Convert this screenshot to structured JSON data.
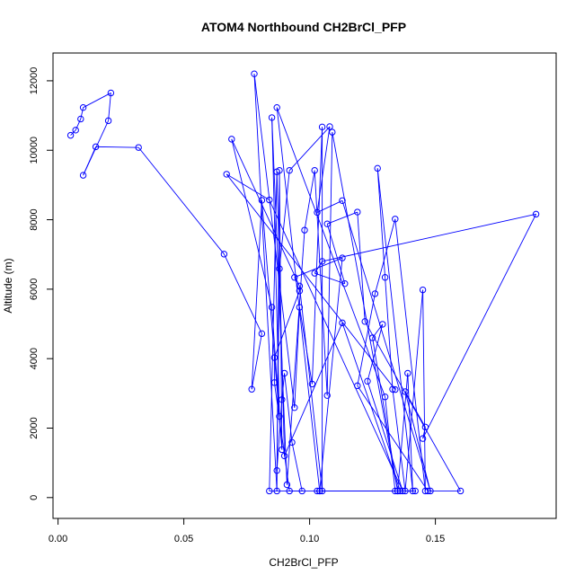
{
  "chart_data": {
    "type": "scatter",
    "title": "ATOM4 Northbound CH2BrCl_PFP",
    "xlabel": "CH2BrCl_PFP",
    "ylabel": "Altitude (m)",
    "xlim": [
      -0.002,
      0.198
    ],
    "ylim": [
      -600,
      12800
    ],
    "xticks": [
      0.0,
      0.05,
      0.1,
      0.15
    ],
    "xtick_labels": [
      "0.00",
      "0.05",
      "0.10",
      "0.15"
    ],
    "yticks": [
      0,
      2000,
      4000,
      6000,
      8000,
      10000,
      12000
    ],
    "ytick_labels": [
      "0",
      "2000",
      "4000",
      "6000",
      "8000",
      "10000",
      "12000"
    ],
    "grid": false,
    "line_color": "#0000ff",
    "marker": "open-circle",
    "series": [
      {
        "name": "",
        "points": [
          [
            0.005,
            10430
          ],
          [
            0.007,
            10580
          ],
          [
            0.009,
            10900
          ],
          [
            0.01,
            11230
          ],
          [
            0.021,
            11650
          ],
          [
            0.02,
            10850
          ],
          [
            0.01,
            9280
          ],
          [
            0.015,
            10100
          ],
          [
            0.032,
            10080
          ],
          [
            0.066,
            7010
          ],
          [
            0.081,
            4720
          ],
          [
            0.077,
            3120
          ],
          [
            0.081,
            8560
          ],
          [
            0.089,
            1380
          ],
          [
            0.088,
            9420
          ],
          [
            0.087,
            190
          ],
          [
            0.078,
            12200
          ],
          [
            0.094,
            2590
          ],
          [
            0.096,
            5480
          ],
          [
            0.101,
            3270
          ],
          [
            0.105,
            10670
          ],
          [
            0.105,
            190
          ],
          [
            0.096,
            6090
          ],
          [
            0.069,
            10320
          ],
          [
            0.085,
            5480
          ],
          [
            0.088,
            2340
          ],
          [
            0.085,
            10940
          ],
          [
            0.091,
            370
          ],
          [
            0.098,
            7700
          ],
          [
            0.102,
            9420
          ],
          [
            0.107,
            2940
          ],
          [
            0.109,
            10520
          ],
          [
            0.135,
            190
          ],
          [
            0.139,
            3580
          ],
          [
            0.141,
            190
          ],
          [
            0.127,
            9480
          ],
          [
            0.13,
            6340
          ],
          [
            0.133,
            3120
          ],
          [
            0.138,
            190
          ],
          [
            0.145,
            5980
          ],
          [
            0.146,
            190
          ],
          [
            0.134,
            8020
          ],
          [
            0.126,
            5870
          ],
          [
            0.119,
            3220
          ],
          [
            0.147,
            190
          ],
          [
            0.16,
            190
          ],
          [
            0.122,
            5070
          ],
          [
            0.119,
            8220
          ],
          [
            0.107,
            7880
          ],
          [
            0.114,
            6160
          ],
          [
            0.102,
            6460
          ],
          [
            0.105,
            6800
          ],
          [
            0.19,
            8160
          ],
          [
            0.145,
            1700
          ],
          [
            0.146,
            2030
          ],
          [
            0.138,
            3050
          ],
          [
            0.148,
            190
          ],
          [
            0.113,
            8550
          ],
          [
            0.103,
            8210
          ],
          [
            0.108,
            10680
          ],
          [
            0.092,
            9420
          ],
          [
            0.088,
            6590
          ],
          [
            0.087,
            780
          ],
          [
            0.089,
            2820
          ],
          [
            0.09,
            3580
          ],
          [
            0.093,
            1590
          ],
          [
            0.097,
            190
          ],
          [
            0.092,
            190
          ],
          [
            0.086,
            3310
          ],
          [
            0.086,
            4030
          ],
          [
            0.096,
            5950
          ],
          [
            0.094,
            6340
          ],
          [
            0.113,
            6900
          ],
          [
            0.104,
            190
          ],
          [
            0.087,
            11230
          ],
          [
            0.13,
            2900
          ],
          [
            0.134,
            190
          ],
          [
            0.084,
            190
          ],
          [
            0.087,
            9380
          ],
          [
            0.09,
            1200
          ],
          [
            0.113,
            5030
          ],
          [
            0.136,
            190
          ],
          [
            0.142,
            190
          ],
          [
            0.103,
            190
          ],
          [
            0.104,
            190
          ],
          [
            0.135,
            190
          ],
          [
            0.125,
            4600
          ],
          [
            0.129,
            4990
          ],
          [
            0.123,
            3350
          ],
          [
            0.137,
            190
          ],
          [
            0.084,
            8570
          ],
          [
            0.067,
            9310
          ],
          [
            0.134,
            3110
          ]
        ]
      }
    ]
  }
}
